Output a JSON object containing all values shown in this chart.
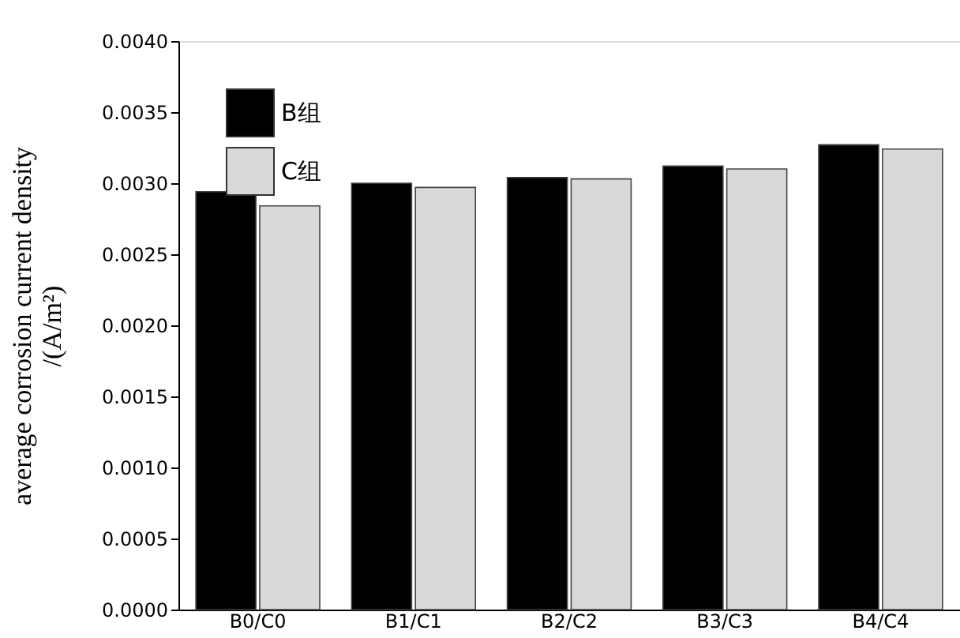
{
  "chart_data": {
    "type": "bar",
    "ylabel": "average corrosion current density\n/(A/m²)",
    "categories": [
      "B0/C0",
      "B1/C1",
      "B2/C2",
      "B3/C3",
      "B4/C4"
    ],
    "series": [
      {
        "name": "B组",
        "color": "#000000",
        "values": [
          0.00294,
          0.003,
          0.00304,
          0.00312,
          0.00327
        ]
      },
      {
        "name": "C组",
        "color": "#d9d9d9",
        "values": [
          0.00284,
          0.00297,
          0.00303,
          0.0031,
          0.00324
        ]
      }
    ],
    "ylim": [
      0,
      0.004
    ],
    "yticks": [
      {
        "value": 0,
        "label": "0.0000"
      },
      {
        "value": 0.0005,
        "label": "0.0005"
      },
      {
        "value": 0.001,
        "label": "0.0010"
      },
      {
        "value": 0.0015,
        "label": "0.0015"
      },
      {
        "value": 0.002,
        "label": "0.0020"
      },
      {
        "value": 0.0025,
        "label": "0.0025"
      },
      {
        "value": 0.003,
        "label": "0.0030"
      },
      {
        "value": 0.0035,
        "label": "0.0035"
      },
      {
        "value": 0.004,
        "label": "0.0040"
      }
    ],
    "grid": false,
    "legend": "top left"
  }
}
